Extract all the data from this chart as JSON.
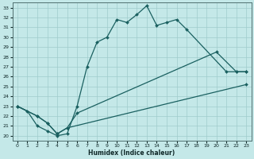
{
  "xlabel": "Humidex (Indice chaleur)",
  "background_color": "#c4e8e8",
  "grid_color": "#a0cccc",
  "line_color": "#1a6060",
  "xlim": [
    -0.5,
    23.5
  ],
  "ylim": [
    19.5,
    33.5
  ],
  "xticks": [
    0,
    1,
    2,
    3,
    4,
    5,
    6,
    7,
    8,
    9,
    10,
    11,
    12,
    13,
    14,
    15,
    16,
    17,
    18,
    19,
    20,
    21,
    22,
    23
  ],
  "yticks": [
    20,
    21,
    22,
    23,
    24,
    25,
    26,
    27,
    28,
    29,
    30,
    31,
    32,
    33
  ],
  "line1_x": [
    0,
    1,
    2,
    3,
    4,
    5,
    6,
    7,
    8,
    9,
    10,
    11,
    12,
    13,
    14,
    15,
    16,
    17,
    21,
    22,
    23
  ],
  "line1_y": [
    23,
    22.5,
    21.0,
    20.5,
    20.0,
    20.2,
    23.0,
    27.0,
    29.5,
    30.0,
    31.8,
    31.5,
    32.3,
    33.2,
    31.2,
    31.5,
    31.8,
    30.8,
    26.5,
    26.5,
    26.5
  ],
  "line2_x": [
    0,
    2,
    3,
    4,
    5,
    6,
    20,
    22,
    23
  ],
  "line2_y": [
    23,
    22.0,
    21.3,
    20.2,
    20.8,
    22.3,
    28.5,
    26.5,
    26.5
  ],
  "line3_x": [
    0,
    2,
    3,
    4,
    5,
    23
  ],
  "line3_y": [
    23,
    22.0,
    21.3,
    20.2,
    20.8,
    25.2
  ],
  "marker_line1_x": [
    0,
    1,
    2,
    3,
    4,
    5,
    6,
    7,
    8,
    9,
    10,
    11,
    12,
    13,
    14,
    15,
    16,
    17,
    21,
    22,
    23
  ],
  "marker_line1_y": [
    23,
    22.5,
    21.0,
    20.5,
    20.0,
    20.2,
    23.0,
    27.0,
    29.5,
    30.0,
    31.8,
    31.5,
    32.3,
    33.2,
    31.2,
    31.5,
    31.8,
    30.8,
    26.5,
    26.5,
    26.5
  ],
  "marker_line2_x": [
    0,
    2,
    3,
    4,
    5,
    6,
    20,
    22,
    23
  ],
  "marker_line2_y": [
    23,
    22.0,
    21.3,
    20.2,
    20.8,
    22.3,
    28.5,
    26.5,
    26.5
  ],
  "marker_line3_x": [
    0,
    2,
    3,
    4,
    5,
    23
  ],
  "marker_line3_y": [
    23,
    22.0,
    21.3,
    20.2,
    20.8,
    25.2
  ]
}
